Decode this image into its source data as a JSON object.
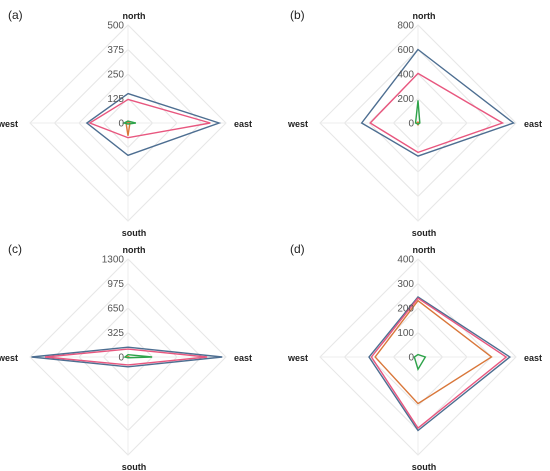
{
  "colors": {
    "series1": "#4d6e91",
    "series2": "#e8577f",
    "series3": "#d9773a",
    "series4": "#2ea34a"
  },
  "chart_data": [
    {
      "type": "radar",
      "panel_label": "(a)",
      "axes": [
        "north",
        "east",
        "south",
        "west"
      ],
      "ticks": [
        "0",
        "125",
        "250",
        "375",
        "500"
      ],
      "rmax": 500,
      "series": [
        {
          "values": [
            150,
            465,
            165,
            210
          ]
        },
        {
          "values": [
            120,
            420,
            75,
            195
          ]
        },
        {
          "values": [
            5,
            10,
            65,
            10
          ]
        },
        {
          "values": [
            10,
            40,
            5,
            20
          ]
        }
      ]
    },
    {
      "type": "radar",
      "panel_label": "(b)",
      "axes": [
        "north",
        "east",
        "south",
        "west"
      ],
      "ticks": [
        "0",
        "200",
        "400",
        "600",
        "800"
      ],
      "rmax": 800,
      "series": [
        {
          "values": [
            600,
            780,
            270,
            460
          ]
        },
        {
          "values": [
            405,
            690,
            240,
            390
          ]
        },
        {
          "values": [
            8,
            10,
            15,
            10
          ]
        },
        {
          "values": [
            185,
            15,
            10,
            20
          ]
        }
      ]
    },
    {
      "type": "radar",
      "panel_label": "(c)",
      "axes": [
        "north",
        "east",
        "south",
        "west"
      ],
      "ticks": [
        "0",
        "325",
        "650",
        "975",
        "1300"
      ],
      "rmax": 1300,
      "series": [
        {
          "values": [
            130,
            1250,
            130,
            1280
          ]
        },
        {
          "values": [
            105,
            1050,
            105,
            1100
          ]
        },
        {
          "values": [
            5,
            10,
            5,
            10
          ]
        },
        {
          "values": [
            30,
            320,
            10,
            40
          ]
        }
      ]
    },
    {
      "type": "radar",
      "panel_label": "(d)",
      "axes": [
        "north",
        "east",
        "south",
        "west"
      ],
      "ticks": [
        "0",
        "100",
        "200",
        "300",
        "400"
      ],
      "rmax": 400,
      "series": [
        {
          "values": [
            245,
            375,
            300,
            200
          ]
        },
        {
          "values": [
            240,
            360,
            290,
            190
          ]
        },
        {
          "values": [
            230,
            300,
            190,
            175
          ]
        },
        {
          "values": [
            10,
            30,
            50,
            15
          ]
        }
      ]
    }
  ]
}
